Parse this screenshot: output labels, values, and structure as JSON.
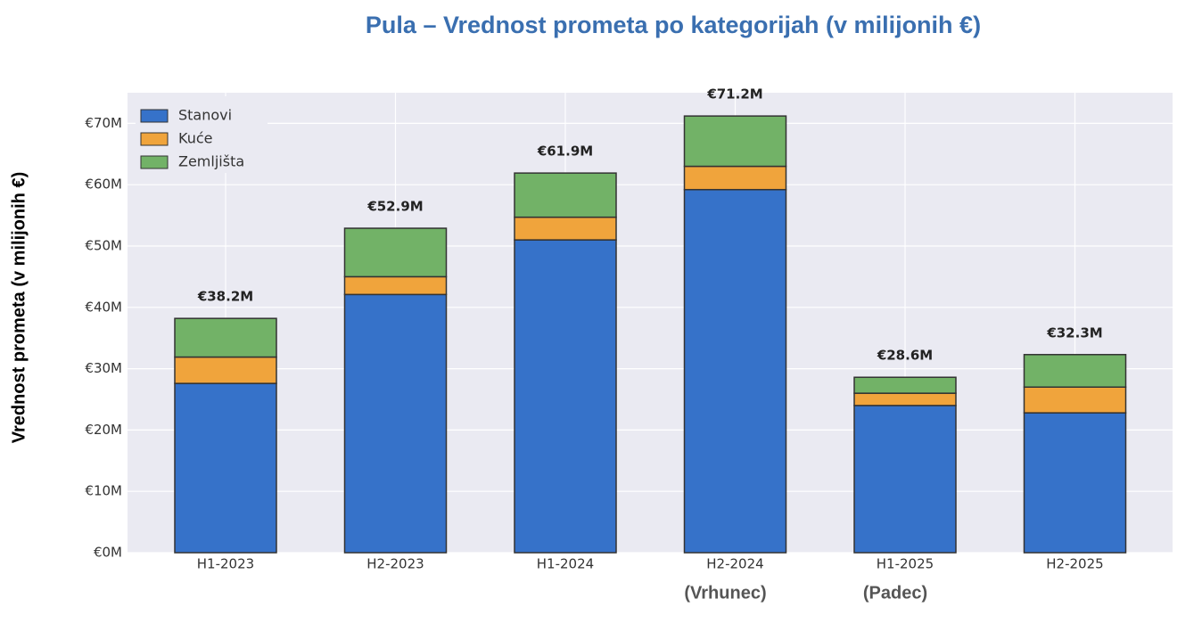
{
  "chart_data": {
    "type": "stacked_bar",
    "title": "Pula – Vrednost prometa po kategorijah (v milijonih €)",
    "y_label": "Vrednost prometa (v milijonih €)",
    "categories": [
      "H1-2023",
      "H2-2023",
      "H1-2024",
      "H2-2024",
      "H1-2025",
      "H2-2025"
    ],
    "series": [
      {
        "name": "Stanovi",
        "color": "#3672c9",
        "values": [
          27.6,
          42.1,
          51.0,
          59.2,
          24.0,
          22.8
        ]
      },
      {
        "name": "Kuće",
        "color": "#f0a43c",
        "values": [
          4.3,
          2.9,
          3.7,
          3.8,
          2.0,
          4.2
        ]
      },
      {
        "name": "Zemljišta",
        "color": "#72b267",
        "values": [
          6.3,
          7.9,
          7.2,
          8.2,
          2.6,
          5.3
        ]
      }
    ],
    "totals": {
      "values": [
        38.2,
        52.9,
        61.9,
        71.2,
        28.6,
        32.3
      ],
      "value_labels": [
        "€38.2M",
        "€52.9M",
        "€61.9M",
        "€71.2M",
        "€28.6M",
        "€32.3M"
      ]
    },
    "annotations": [
      {
        "text": "(Vrhunec)",
        "category": "H2-2024"
      },
      {
        "text": "(Padec)",
        "category": "H1-2025"
      }
    ],
    "ylim": [
      0,
      75
    ],
    "yticks": [
      {
        "value": 0,
        "label": "€0M"
      },
      {
        "value": 10,
        "label": "€10M"
      },
      {
        "value": 20,
        "label": "€20M"
      },
      {
        "value": 30,
        "label": "€30M"
      },
      {
        "value": 40,
        "label": "€40M"
      },
      {
        "value": 50,
        "label": "€50M"
      },
      {
        "value": 60,
        "label": "€60M"
      },
      {
        "value": 70,
        "label": "€70M"
      }
    ],
    "grid": true,
    "legend": "upper left"
  }
}
